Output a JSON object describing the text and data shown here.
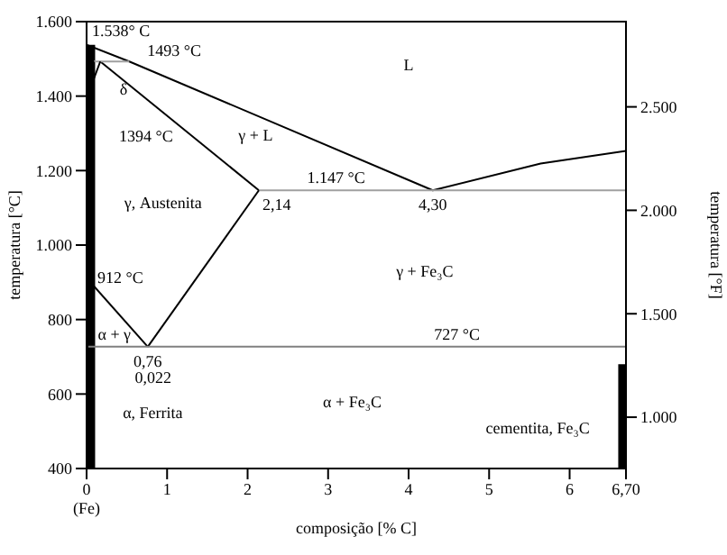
{
  "chart_data": {
    "type": "line",
    "xlabel": "composição [% C]",
    "ylabel": "temperatura [°C]",
    "y2label": "temperatura [°F]",
    "xlim": [
      0,
      6.7
    ],
    "xticks": [
      0,
      1,
      2,
      3,
      4,
      5,
      6,
      {
        "value": 6.7,
        "label": "6,70"
      }
    ],
    "ylim": [
      400,
      1600
    ],
    "yticks": [
      {
        "value": 400,
        "label": "400"
      },
      {
        "value": 600,
        "label": "600"
      },
      {
        "value": 800,
        "label": "800"
      },
      {
        "value": 1000,
        "label": "1.000"
      },
      {
        "value": 1200,
        "label": "1.200"
      },
      {
        "value": 1400,
        "label": "1.400"
      },
      {
        "value": 1600,
        "label": "1.600"
      }
    ],
    "y2lim": [
      752,
      2912
    ],
    "y2ticks": [
      {
        "value": 1000,
        "label": "1.000"
      },
      {
        "value": 1500,
        "label": "1.500"
      },
      {
        "value": 2000,
        "label": "2.000"
      },
      {
        "value": 2500,
        "label": "2.500"
      }
    ],
    "marker": "none",
    "line_style": "solid",
    "series": [
      {
        "color": "#000000",
        "x": [
          0.05,
          0.05
        ],
        "values": [
          400,
          1538
        ]
      },
      {
        "color": "#000000",
        "x": [
          6.66,
          6.66
        ],
        "values": [
          400,
          680
        ]
      },
      {
        "color": "#000000",
        "x": [
          0,
          0.53,
          4.3,
          5.64,
          6.7
        ],
        "values": [
          1538,
          1493,
          1147,
          1219,
          1253
        ]
      },
      {
        "color": "#000000",
        "x": [
          0.17,
          2.14
        ],
        "values": [
          1493,
          1147
        ]
      },
      {
        "color": "#a0a0a0",
        "x": [
          0.09,
          0.53
        ],
        "values": [
          1493,
          1493
        ]
      },
      {
        "color": "#000000",
        "x": [
          0.09,
          0,
          0.17
        ],
        "values": [
          1493,
          1394,
          1493
        ]
      },
      {
        "color": "#a0a0a0",
        "x": [
          2.14,
          6.7
        ],
        "values": [
          1147,
          1147
        ]
      },
      {
        "color": "#000000",
        "x": [
          0,
          0.76
        ],
        "values": [
          912,
          727
        ]
      },
      {
        "color": "#000000",
        "x": [
          0.76,
          2.14
        ],
        "values": [
          727,
          1147
        ]
      },
      {
        "color": "#808080",
        "x": [
          0.022,
          6.7
        ],
        "values": [
          727,
          727
        ]
      }
    ],
    "annotations": [
      {
        "text": "1.538° C",
        "x": 0,
        "y": 1538
      },
      {
        "text": "1493 °C",
        "x": 0.53,
        "y": 1493
      },
      "δ",
      {
        "text": "1394 °C",
        "x": 0,
        "y": 1394
      },
      "L",
      "γ + L",
      {
        "text": "1.147 °C",
        "x": 3.1,
        "y": 1147
      },
      {
        "text": "2,14",
        "x": 2.14,
        "y": 1147
      },
      {
        "text": "4,30",
        "x": 4.3,
        "y": 1147
      },
      "γ, Austenita",
      {
        "text": "912 °C",
        "x": 0,
        "y": 912
      },
      "γ + Fe₃C",
      {
        "text": "727 °C",
        "x": 4.6,
        "y": 727
      },
      "α + γ",
      {
        "text": "0,76",
        "x": 0.76,
        "y": 727
      },
      "0,022",
      "α, Ferrita",
      "α + Fe₃C",
      "cementita, Fe₃C",
      "(Fe)"
    ]
  }
}
